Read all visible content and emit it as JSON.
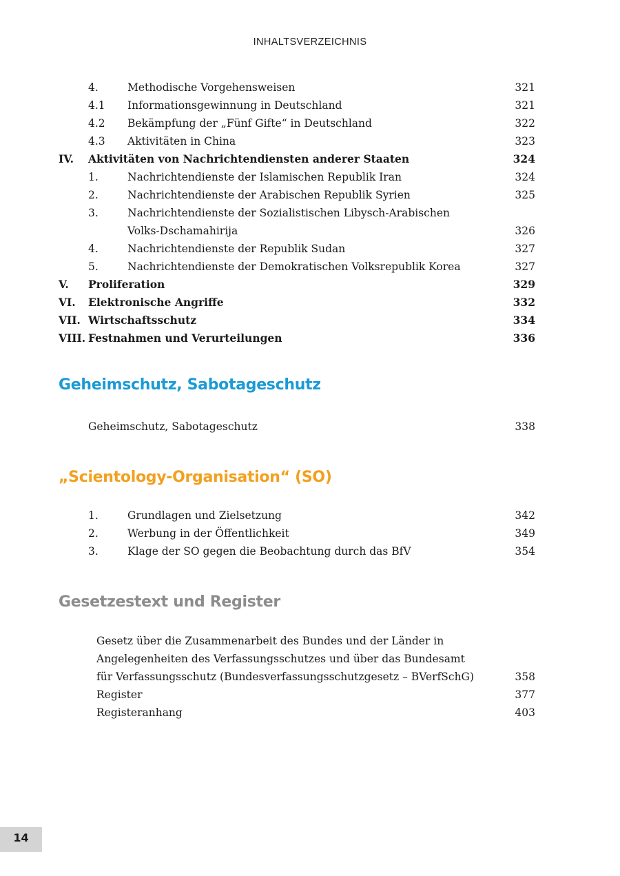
{
  "running_header": "INHALTSVERZEICHNIS",
  "colors": {
    "geheimschutz": "#1a9ad6",
    "scientology": "#f2a01e",
    "gesetz": "#8c8c8c"
  },
  "toc1": [
    {
      "roman": "",
      "num": "4.",
      "text": "Methodische Vorgehensweisen",
      "page": "321"
    },
    {
      "roman": "",
      "num": "4.1",
      "text": "Informationsgewinnung in Deutschland",
      "page": "321"
    },
    {
      "roman": "",
      "num": "4.2",
      "text": "Bekämpfung der „Fünf Gifte“ in Deutschland",
      "page": "322"
    },
    {
      "roman": "",
      "num": "4.3",
      "text": "Aktivitäten in China",
      "page": "323"
    },
    {
      "roman": "IV.",
      "num": "",
      "text": "Aktivitäten von Nachrichtendiensten anderer Staaten",
      "page": "324",
      "bold": true
    },
    {
      "roman": "",
      "num": "1.",
      "text": "Nachrichtendienste der Islamischen Republik Iran",
      "page": "324"
    },
    {
      "roman": "",
      "num": "2.",
      "text": "Nachrichtendienste der Arabischen Republik Syrien",
      "page": "325"
    },
    {
      "roman": "",
      "num": "3.",
      "text": "Nachrichtendienste der Sozialistischen Libysch-Arabischen",
      "page": ""
    },
    {
      "roman": "",
      "num": "",
      "text": "Volks-Dschamahirija",
      "page": "326"
    },
    {
      "roman": "",
      "num": "4.",
      "text": "Nachrichtendienste der Republik Sudan",
      "page": "327"
    },
    {
      "roman": "",
      "num": "5.",
      "text": "Nachrichtendienste der Demokratischen Volksrepublik Korea",
      "page": "327"
    },
    {
      "roman": "V.",
      "num": "",
      "text": "Proliferation",
      "page": "329",
      "bold": true
    },
    {
      "roman": "VI.",
      "num": "",
      "text": "Elektronische Angriffe",
      "page": "332",
      "bold": true
    },
    {
      "roman": "VII.",
      "num": "",
      "text": "Wirtschaftsschutz",
      "page": "334",
      "bold": true
    },
    {
      "roman": "VIII.",
      "num": "",
      "text": "Festnahmen und Verurteilungen",
      "page": "336",
      "bold": true
    }
  ],
  "section_geheimschutz": {
    "title": "Geheimschutz, Sabotageschutz",
    "rows": [
      {
        "roman": "",
        "num": "",
        "text": "Geheimschutz, Sabotageschutz",
        "page": "338"
      }
    ]
  },
  "section_scientology": {
    "title": "„Scientology-Organisation“ (SO)",
    "rows": [
      {
        "roman": "",
        "num": "1.",
        "text": "Grundlagen und Zielsetzung",
        "page": "342"
      },
      {
        "roman": "",
        "num": "2.",
        "text": "Werbung in der Öffentlichkeit",
        "page": "349"
      },
      {
        "roman": "",
        "num": "3.",
        "text": "Klage der SO gegen die Beobachtung durch das BfV",
        "page": "354"
      }
    ]
  },
  "section_gesetz": {
    "title": "Gesetzestext und Register",
    "rows": [
      {
        "roman": "",
        "num": "",
        "text": "Gesetz über die Zusammenarbeit des Bundes und der Länder in",
        "page": ""
      },
      {
        "roman": "",
        "num": "",
        "text": "Angelegenheiten des Verfassungsschutzes und über das Bundesamt",
        "page": ""
      },
      {
        "roman": "",
        "num": "",
        "text": "für Verfassungsschutz (Bundesverfassungsschutzgesetz – BVerfSchG)",
        "page": "358"
      },
      {
        "roman": "",
        "num": "",
        "text": "Register",
        "page": "377"
      },
      {
        "roman": "",
        "num": "",
        "text": "Registeranhang",
        "page": "403"
      }
    ]
  },
  "page_number": "14"
}
